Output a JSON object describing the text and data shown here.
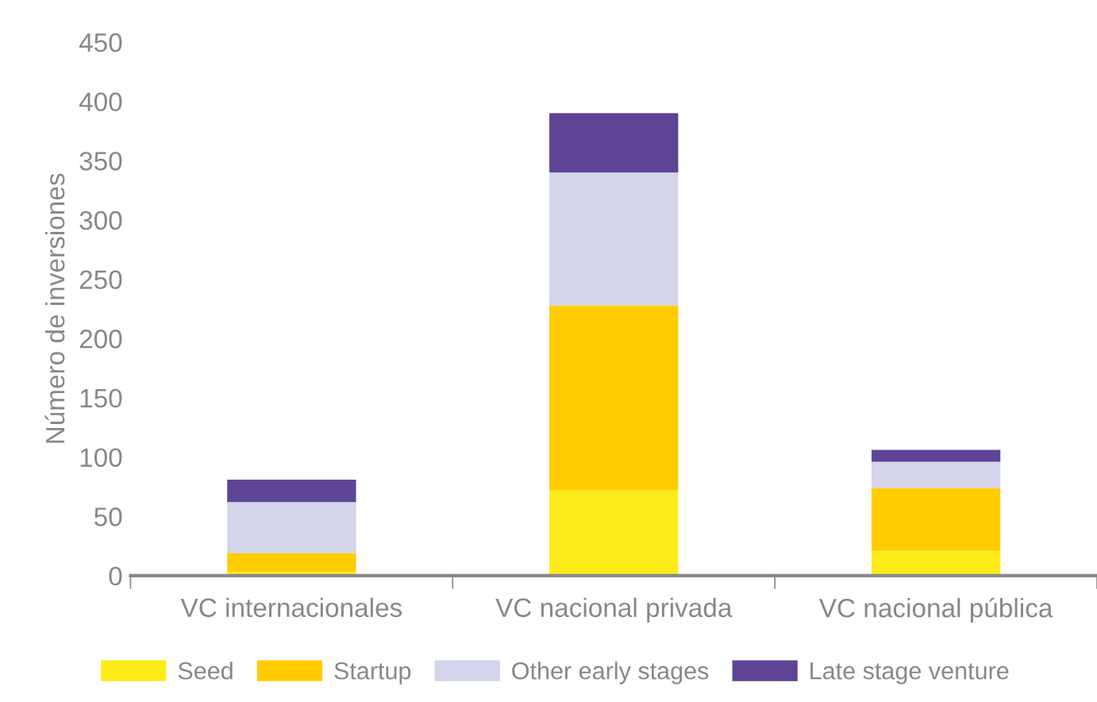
{
  "chart_data": {
    "type": "bar",
    "stacked": true,
    "ylabel": "Número de inversiones",
    "categories": [
      "VC internacionales",
      "VC nacional privada",
      "VC nacional pública"
    ],
    "series": [
      {
        "name": "Seed",
        "color": "#fdeb1a",
        "values": [
          3,
          72,
          21
        ]
      },
      {
        "name": "Startup",
        "color": "#ffcd00",
        "values": [
          16,
          156,
          53
        ]
      },
      {
        "name": "Other early stages",
        "color": "#d4d4ea",
        "values": [
          43,
          112,
          22
        ]
      },
      {
        "name": "Late stage venture",
        "color": "#5e4495",
        "values": [
          19,
          50,
          10
        ]
      }
    ],
    "ylim": [
      0,
      450
    ],
    "yticks": [
      0,
      50,
      100,
      150,
      200,
      250,
      300,
      350,
      400,
      450
    ],
    "grid": false,
    "legend": "bottom"
  }
}
